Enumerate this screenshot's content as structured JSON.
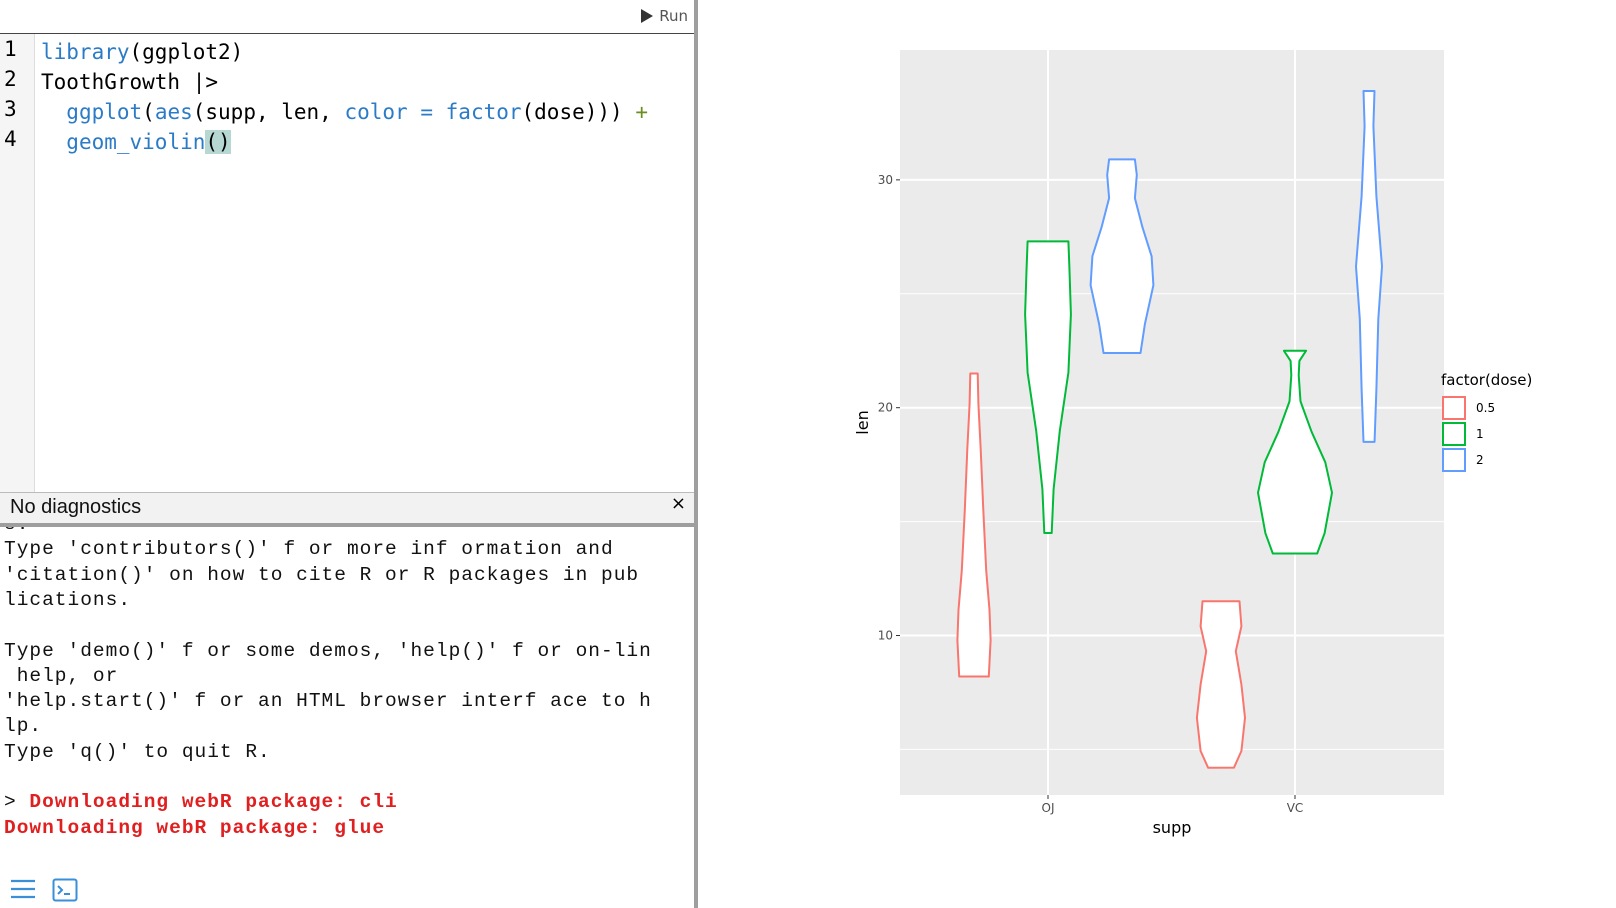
{
  "toolbar": {
    "run_label": "Run"
  },
  "editor": {
    "line_numbers": [
      "1",
      "2",
      "3",
      "4"
    ],
    "lines": [
      [
        {
          "t": "library",
          "c": "fn"
        },
        {
          "t": "(ggplot2)",
          "c": "kw"
        }
      ],
      [
        {
          "t": "ToothGrowth |>",
          "c": "kw"
        }
      ],
      [
        {
          "t": "  ",
          "c": "kw"
        },
        {
          "t": "ggplot",
          "c": "fn"
        },
        {
          "t": "(",
          "c": "kw"
        },
        {
          "t": "aes",
          "c": "fn"
        },
        {
          "t": "(supp, len, ",
          "c": "kw"
        },
        {
          "t": "color",
          "c": "fn"
        },
        {
          "t": " ",
          "c": "kw"
        },
        {
          "t": "=",
          "c": "fn"
        },
        {
          "t": " ",
          "c": "kw"
        },
        {
          "t": "factor",
          "c": "fn"
        },
        {
          "t": "(dose))) ",
          "c": "kw"
        },
        {
          "t": "+",
          "c": "op-plus"
        }
      ],
      [
        {
          "t": "  ",
          "c": "kw"
        },
        {
          "t": "geom_violin",
          "c": "fn"
        },
        {
          "t": "()",
          "c": "paren-hl"
        }
      ]
    ]
  },
  "diagnostics": {
    "text": "No diagnostics",
    "close": "×"
  },
  "console": {
    "lines": [
      {
        "t": "s.",
        "err": false
      },
      {
        "t": "Type 'contributors()' f or more inf ormation and",
        "err": false
      },
      {
        "t": "'citation()' on how to cite R or R packages in pub",
        "err": false
      },
      {
        "t": "lications.",
        "err": false
      },
      {
        "t": "",
        "err": false
      },
      {
        "t": "Type 'demo()' f or some demos, 'help()' f or on-lin",
        "err": false
      },
      {
        "t": " help, or",
        "err": false
      },
      {
        "t": "'help.start()' f or an HTML browser interf ace to h",
        "err": false
      },
      {
        "t": "lp.",
        "err": false
      },
      {
        "t": "Type 'q()' to quit R.",
        "err": false
      },
      {
        "t": "",
        "err": false
      },
      {
        "t": "> ",
        "err": false,
        "suffix": "Downloading webR package: cli"
      },
      {
        "t": "Downloading webR package: glue",
        "err": true
      }
    ],
    "icons": [
      "menu-icon",
      "terminal-icon"
    ]
  },
  "chart_data": {
    "type": "violin",
    "xlabel": "supp",
    "ylabel": "len",
    "categories": [
      "OJ",
      "VC"
    ],
    "yticks": [
      10,
      20,
      30
    ],
    "ylim": [
      3.0,
      35.7
    ],
    "legend": {
      "title": "factor(dose)",
      "position": "right",
      "entries": [
        "0.5",
        "1",
        "2"
      ]
    },
    "colors": {
      "0.5": "#F8766D",
      "1": "#00BA38",
      "2": "#619CFF",
      "panel": "#EBEBEB",
      "grid": "#FFFFFF"
    },
    "series": [
      {
        "name": "0.5",
        "category": "OJ",
        "min": 8.2,
        "max": 21.5
      },
      {
        "name": "1",
        "category": "OJ",
        "min": 14.5,
        "max": 27.3
      },
      {
        "name": "2",
        "category": "OJ",
        "min": 22.4,
        "max": 30.9
      },
      {
        "name": "0.5",
        "category": "VC",
        "min": 4.2,
        "max": 11.5
      },
      {
        "name": "1",
        "category": "VC",
        "min": 13.6,
        "max": 22.5
      },
      {
        "name": "2",
        "category": "VC",
        "min": 18.5,
        "max": 33.9
      }
    ]
  }
}
